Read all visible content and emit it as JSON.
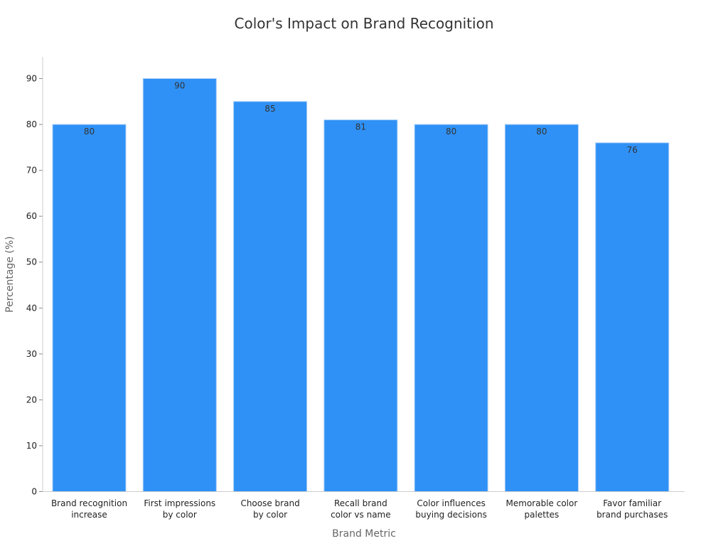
{
  "chart_data": {
    "type": "bar",
    "title": "Color's Impact on Brand Recognition",
    "xlabel": "Brand Metric",
    "ylabel": "Percentage (%)",
    "categories": [
      [
        "Brand recognition",
        "increase"
      ],
      [
        "First impressions",
        "by color"
      ],
      [
        "Choose brand",
        "by color"
      ],
      [
        "Recall brand",
        "color vs name"
      ],
      [
        "Color influences",
        "buying decisions"
      ],
      [
        "Memorable color",
        "palettes"
      ],
      [
        "Favor familiar",
        "brand purchases"
      ]
    ],
    "values": [
      80,
      90,
      85,
      81,
      80,
      80,
      76
    ],
    "data_labels": [
      "80",
      "90",
      "85",
      "81",
      "80",
      "80",
      "76"
    ],
    "y_ticks": [
      0,
      10,
      20,
      30,
      40,
      50,
      60,
      70,
      80,
      90
    ],
    "ylim": [
      0,
      95
    ],
    "grid": false,
    "legend": "none",
    "bar_color": "#2f91f6",
    "bar_edge_color": "#a8cdf5"
  }
}
